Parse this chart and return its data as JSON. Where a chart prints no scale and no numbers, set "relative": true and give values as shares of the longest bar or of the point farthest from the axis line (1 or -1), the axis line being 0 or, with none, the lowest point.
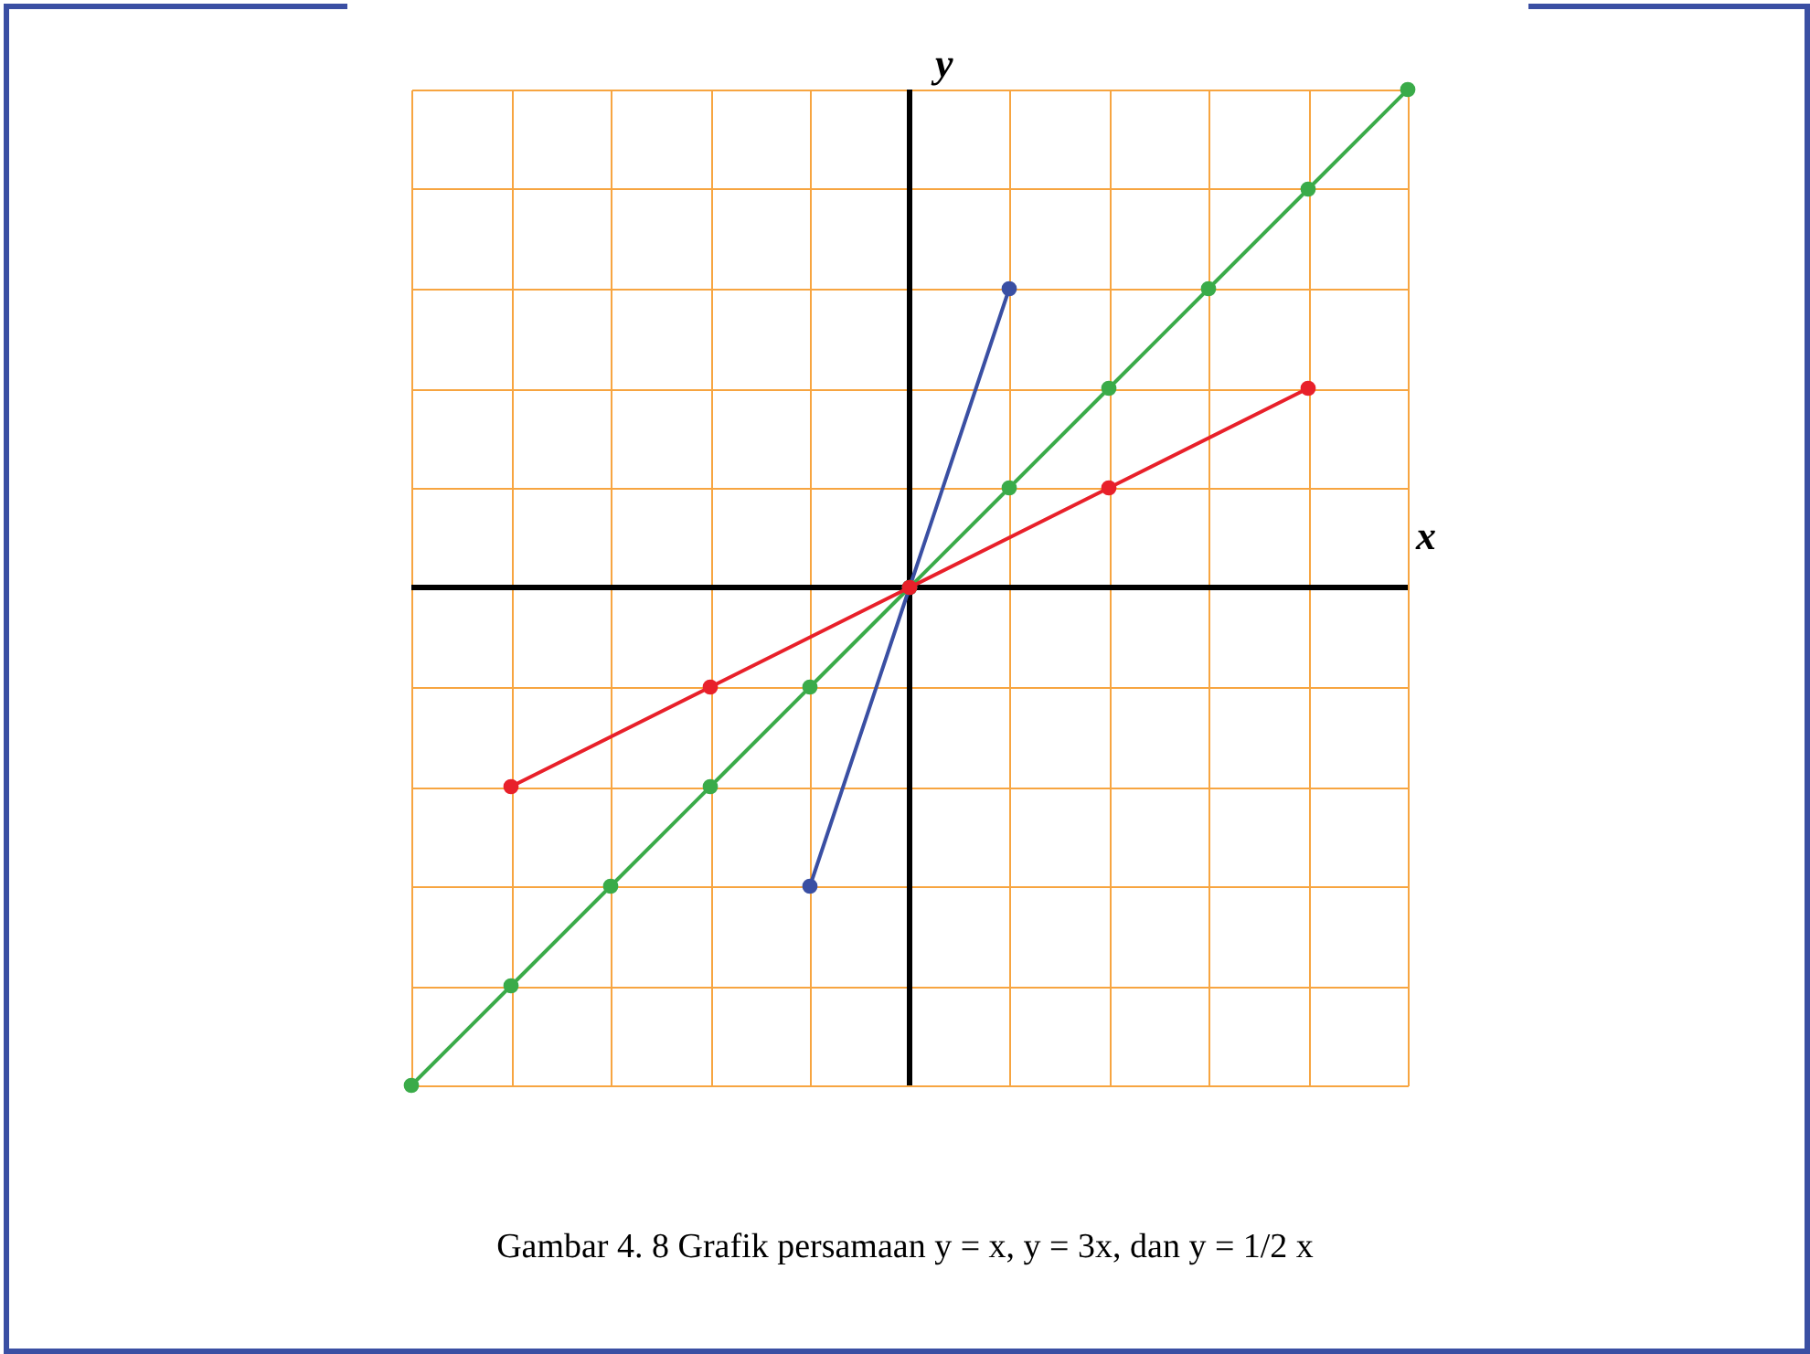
{
  "chart_data": {
    "type": "line",
    "relative": true,
    "xlabel": "x",
    "ylabel": "y",
    "categories": [
      null,
      null,
      null,
      null,
      null,
      null,
      null,
      null,
      null,
      null,
      null
    ],
    "series": [
      {
        "color": "#3a4fa3",
        "values": [
          null,
          null,
          null,
          null,
          -0.6,
          0,
          0.6,
          null,
          null,
          null,
          null
        ]
      },
      {
        "color": "#3aab49",
        "values": [
          -1,
          -0.8,
          -0.6,
          -0.4,
          -0.2,
          0,
          0.2,
          0.4,
          0.6,
          0.8,
          1
        ]
      },
      {
        "color": "#e8202a",
        "values": [
          null,
          -0.4,
          null,
          -0.2,
          null,
          0,
          null,
          0.2,
          null,
          0.4,
          null
        ]
      }
    ],
    "grid": true,
    "marker": "circle",
    "line_style": "solid",
    "annotations": [
      "Gambar 4. 8 Grafik persamaan y = x, y = 3x, dan y = 1/2 x"
    ]
  }
}
